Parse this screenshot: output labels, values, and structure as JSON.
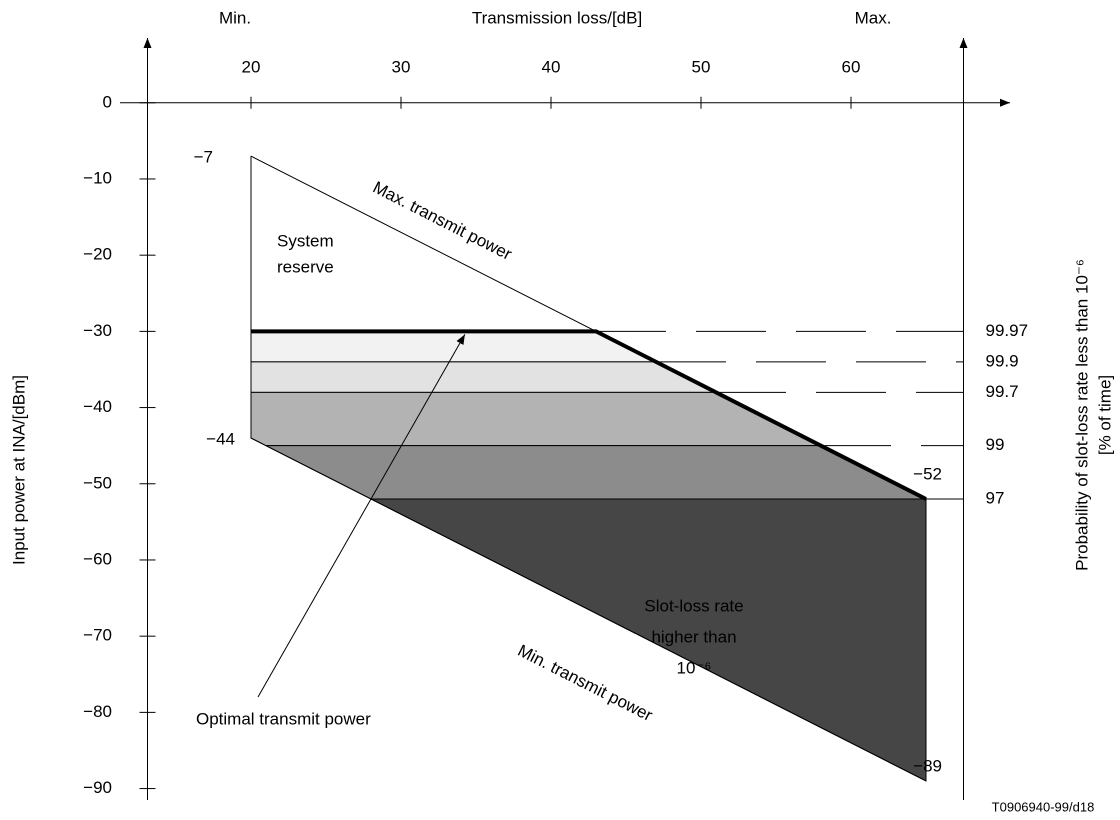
{
  "chart_data": {
    "type": "region",
    "x_label": "Transmission loss/[dB]",
    "x_min_label": "Min.",
    "x_max_label": "Max.",
    "y_label": "Input power at INA/[dBm]",
    "y2_label": [
      "Probability of slot-loss rate less than 10⁻⁶",
      "[% of time]"
    ],
    "xlim": [
      13.1,
      67.5
    ],
    "ylim": [
      -91.5,
      8.5
    ],
    "xticks": [
      20,
      30,
      40,
      50,
      60
    ],
    "yticks": [
      0,
      {
        "value": -10,
        "label": "−10"
      },
      {
        "value": -20,
        "label": "−20"
      },
      {
        "value": -30,
        "label": "−30"
      },
      {
        "value": -40,
        "label": "−40"
      },
      {
        "value": -50,
        "label": "−50"
      },
      {
        "value": -60,
        "label": "−60"
      },
      {
        "value": -70,
        "label": "−70"
      },
      {
        "value": -80,
        "label": "−80"
      },
      {
        "value": -90,
        "label": "−90"
      }
    ],
    "series": [
      {
        "name": "Max. transmit power",
        "color": "#000000",
        "width": 1,
        "x": [
          20,
          65
        ],
        "values": [
          -7,
          -52
        ]
      },
      {
        "name": "Optimal transmit power",
        "color": "#000000",
        "width": 4,
        "x": [
          20,
          43,
          65
        ],
        "values": [
          -30,
          -30,
          -52
        ]
      },
      {
        "name": "Min. transmit power",
        "color": "#000000",
        "width": 1,
        "x": [
          20,
          65
        ],
        "values": [
          -44,
          -89
        ]
      }
    ],
    "bands": [
      {
        "level": -30,
        "probability": 99.97,
        "color": "#f2f2f2"
      },
      {
        "level": -34,
        "probability": 99.9,
        "color": "#e2e2e2"
      },
      {
        "level": -38,
        "probability": 99.7,
        "color": "#b3b3b3"
      },
      {
        "level": -45,
        "probability": 99,
        "color": "#8c8c8c"
      },
      {
        "level": -52,
        "probability": 97,
        "color": "#464646"
      }
    ],
    "point_labels": [
      {
        "x": 20,
        "y": -7,
        "label": "−7"
      },
      {
        "x": 20,
        "y": -44,
        "label": "−44"
      },
      {
        "x": 65,
        "y": -52,
        "label": "−52"
      },
      {
        "x": 65,
        "y": -89,
        "label": "−89"
      }
    ],
    "annotations": {
      "reserve": [
        "System",
        "reserve"
      ],
      "outage": [
        "Slot-loss rate",
        "higher than",
        "10⁻⁶"
      ]
    },
    "footnote": "T0906940-99/d18"
  }
}
